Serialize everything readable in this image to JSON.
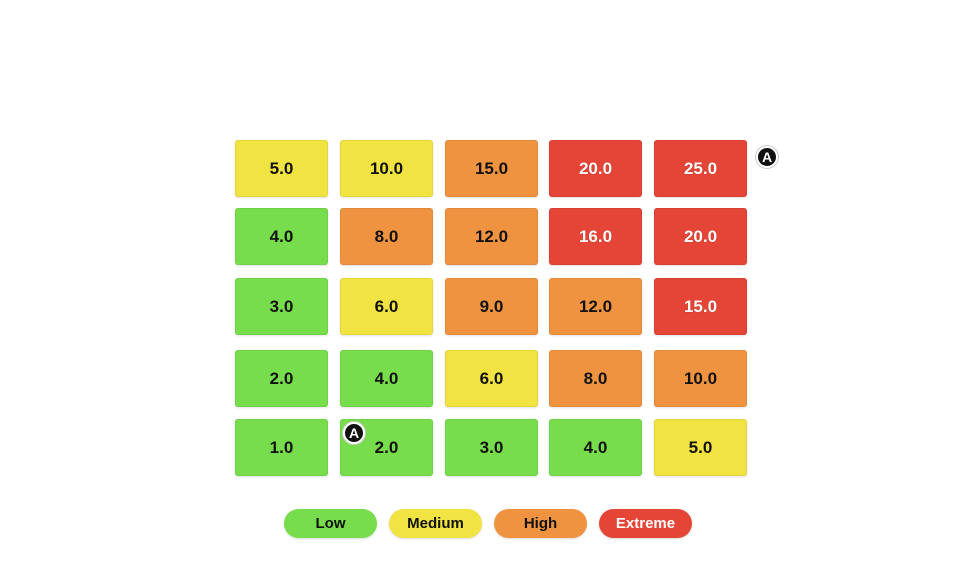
{
  "chart_data": {
    "type": "heatmap",
    "title": "",
    "rows": [
      [
        5.0,
        10.0,
        15.0,
        20.0,
        25.0
      ],
      [
        4.0,
        8.0,
        12.0,
        16.0,
        20.0
      ],
      [
        3.0,
        6.0,
        9.0,
        12.0,
        15.0
      ],
      [
        2.0,
        4.0,
        6.0,
        8.0,
        10.0
      ],
      [
        1.0,
        2.0,
        3.0,
        4.0,
        5.0
      ]
    ],
    "levels": [
      [
        1,
        1,
        2,
        3,
        3
      ],
      [
        0,
        2,
        2,
        3,
        3
      ],
      [
        0,
        1,
        2,
        2,
        3
      ],
      [
        0,
        0,
        1,
        2,
        2
      ],
      [
        0,
        0,
        0,
        0,
        1
      ]
    ],
    "value_format_decimals": 1,
    "markers": [
      {
        "label": "A",
        "row": 0,
        "col": 4,
        "anchor": "right-of-cell"
      },
      {
        "label": "A",
        "row": 4,
        "col": 1,
        "anchor": "top-left-of-cell"
      }
    ],
    "legend": [
      {
        "label": "Low",
        "color": "#77dd4c",
        "text_color": "#111111"
      },
      {
        "label": "Medium",
        "color": "#f1e341",
        "text_color": "#111111"
      },
      {
        "label": "High",
        "color": "#f09340",
        "text_color": "#111111"
      },
      {
        "label": "Extreme",
        "color": "#e54536",
        "text_color": "#ffffff"
      }
    ]
  }
}
